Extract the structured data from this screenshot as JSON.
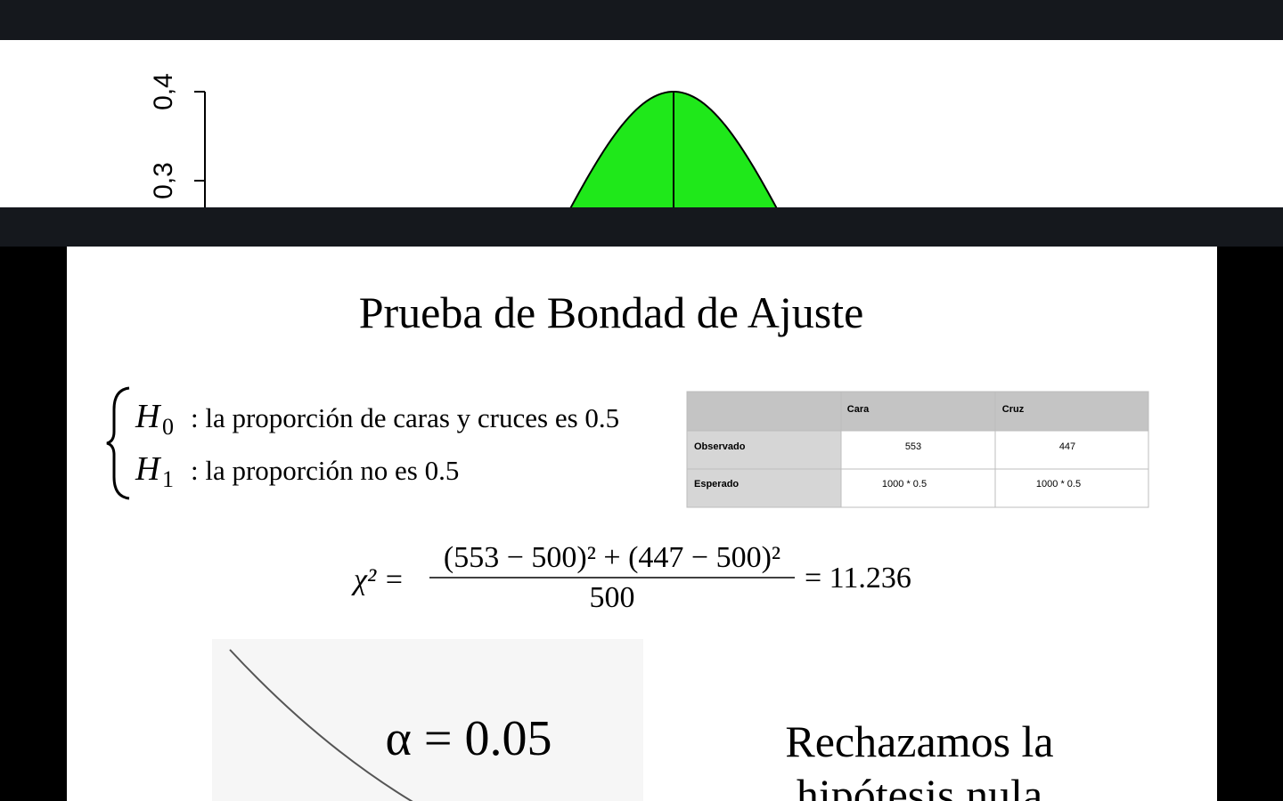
{
  "top_plot": {
    "y_tick_labels": [
      "0,4",
      "0,3"
    ]
  },
  "slide": {
    "title": "Prueba de Bondad de Ajuste",
    "hypotheses": [
      {
        "symbol": "H",
        "subscript": "0",
        "text": ": la proporción de caras y cruces es 0.5"
      },
      {
        "symbol": "H",
        "subscript": "1",
        "text": ": la proporción no es 0.5"
      }
    ],
    "table": {
      "header": [
        "Cara",
        "Cruz"
      ],
      "rows": [
        [
          "Observado",
          "553",
          "447"
        ],
        [
          "Esperado",
          "1000 * 0.5",
          "1000 * 0.5"
        ]
      ]
    },
    "formula": {
      "lhs": "χ² =",
      "numerator": "(553 − 500)² + (447 − 500)²",
      "denominator": "500",
      "result": "= 11.236"
    },
    "alpha": "α = 0.05",
    "conclusion": [
      "Rechazamos la",
      "hipótesis nula"
    ]
  }
}
